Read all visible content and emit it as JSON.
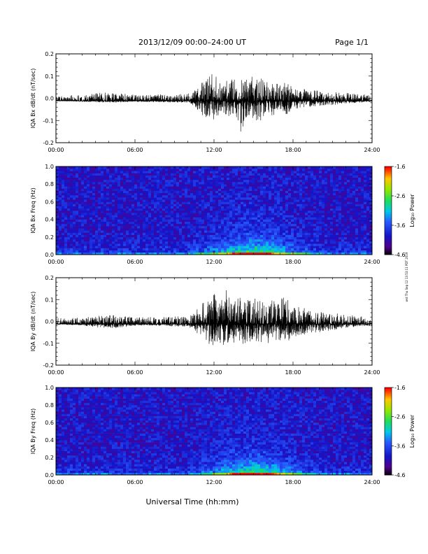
{
  "header": {
    "date_range": "2013/12/09   00:00–24:00 UT",
    "page": "Page 1/1"
  },
  "footer": {
    "xlabel": "Universal Time (hh:mm)",
    "side_note": "wst Thu Sep 12 13:53:11 PDT 2019"
  },
  "chart_data": [
    {
      "type": "line",
      "ylabel": "IQA Bx dB/dt (nT/sec)",
      "xlim": [
        0,
        24
      ],
      "ylim": [
        -0.2,
        0.2
      ],
      "x_ticks": [
        "00:00",
        "06:00",
        "12:00",
        "18:00",
        "24:00"
      ],
      "y_ticks": [
        "-0.2",
        "-0.1",
        "0.0",
        "0.1",
        "0.2"
      ],
      "envelope": {
        "x_hours": [
          0,
          2,
          4,
          6,
          8,
          10,
          10.5,
          11,
          11.5,
          12,
          12.5,
          13,
          13.5,
          14,
          14.5,
          15,
          15.5,
          16,
          16.5,
          17,
          17.5,
          18,
          19,
          20,
          21,
          22,
          23,
          24
        ],
        "max": [
          0.012,
          0.015,
          0.03,
          0.016,
          0.018,
          0.02,
          0.035,
          0.07,
          0.09,
          0.12,
          0.07,
          0.08,
          0.09,
          0.11,
          0.09,
          0.1,
          0.09,
          0.08,
          0.09,
          0.06,
          0.08,
          0.05,
          0.04,
          0.035,
          0.03,
          0.025,
          0.02,
          0.015
        ],
        "min": [
          -0.012,
          -0.015,
          -0.02,
          -0.016,
          -0.018,
          -0.02,
          -0.035,
          -0.075,
          -0.09,
          -0.1,
          -0.07,
          -0.08,
          -0.09,
          -0.16,
          -0.1,
          -0.09,
          -0.12,
          -0.07,
          -0.08,
          -0.05,
          -0.08,
          -0.05,
          -0.04,
          -0.035,
          -0.03,
          -0.025,
          -0.02,
          -0.015
        ]
      }
    },
    {
      "type": "heatmap",
      "ylabel": "IQA Bx Freq (Hz)",
      "xlim": [
        0,
        24
      ],
      "ylim": [
        0,
        1.0
      ],
      "x_ticks": [
        "00:00",
        "06:00",
        "12:00",
        "18:00",
        "24:00"
      ],
      "y_ticks": [
        "0.0",
        "0.2",
        "0.4",
        "0.6",
        "0.8",
        "1.0"
      ],
      "colorbar": {
        "label": "Log₁₀ Power",
        "ticks": [
          "-1.6",
          "-2.6",
          "-3.6",
          "-4.6"
        ],
        "range": [
          -4.6,
          -1.6
        ]
      }
    },
    {
      "type": "line",
      "ylabel": "IQA By dB/dt (nT/sec)",
      "xlim": [
        0,
        24
      ],
      "ylim": [
        -0.2,
        0.2
      ],
      "x_ticks": [
        "00:00",
        "06:00",
        "12:00",
        "18:00",
        "24:00"
      ],
      "y_ticks": [
        "-0.2",
        "-0.1",
        "0.0",
        "0.1",
        "0.2"
      ],
      "envelope": {
        "x_hours": [
          0,
          2,
          4,
          6,
          8,
          10,
          10.5,
          11,
          11.5,
          12,
          12.5,
          13,
          13.5,
          14,
          14.5,
          15,
          15.5,
          16,
          16.5,
          17,
          17.5,
          18,
          19,
          20,
          21,
          22,
          23,
          24
        ],
        "max": [
          0.015,
          0.018,
          0.03,
          0.02,
          0.02,
          0.025,
          0.04,
          0.08,
          0.1,
          0.13,
          0.1,
          0.16,
          0.12,
          0.11,
          0.1,
          0.1,
          0.12,
          0.1,
          0.1,
          0.1,
          0.12,
          0.07,
          0.06,
          0.05,
          0.04,
          0.03,
          0.025,
          0.02
        ],
        "min": [
          -0.015,
          -0.018,
          -0.035,
          -0.02,
          -0.02,
          -0.025,
          -0.04,
          -0.08,
          -0.1,
          -0.12,
          -0.1,
          -0.12,
          -0.1,
          -0.11,
          -0.1,
          -0.09,
          -0.1,
          -0.1,
          -0.1,
          -0.09,
          -0.1,
          -0.07,
          -0.06,
          -0.05,
          -0.04,
          -0.03,
          -0.025,
          -0.02
        ]
      }
    },
    {
      "type": "heatmap",
      "ylabel": "IQA By Freq (Hz)",
      "xlim": [
        0,
        24
      ],
      "ylim": [
        0,
        1.0
      ],
      "x_ticks": [
        "00:00",
        "06:00",
        "12:00",
        "18:00",
        "24:00"
      ],
      "y_ticks": [
        "0.0",
        "0.2",
        "0.4",
        "0.6",
        "0.8",
        "1.0"
      ],
      "colorbar": {
        "label": "Log₁₀ Power",
        "ticks": [
          "-1.6",
          "-2.6",
          "-3.6",
          "-4.6"
        ],
        "range": [
          -4.6,
          -1.6
        ]
      }
    }
  ]
}
